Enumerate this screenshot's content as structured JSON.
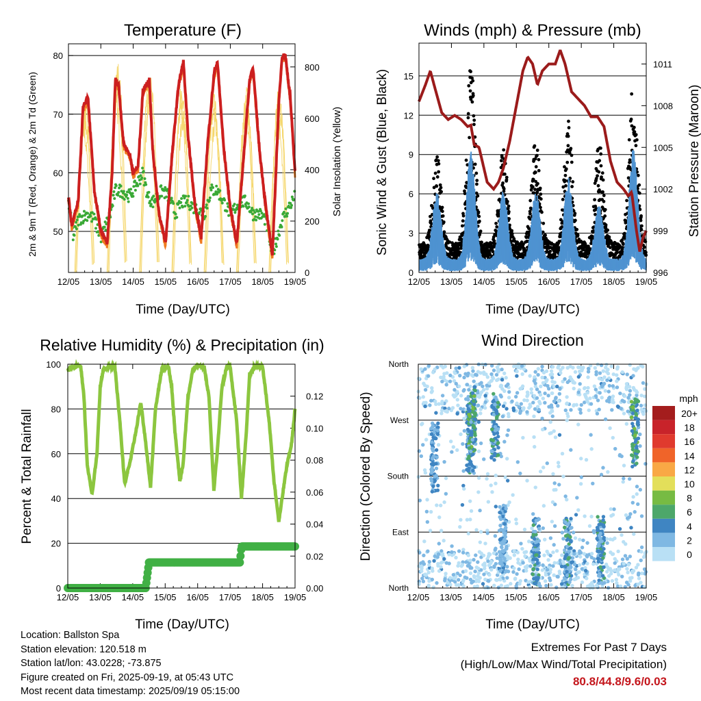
{
  "colors": {
    "t2m": "#cc1f1f",
    "t9m": "#f07b20",
    "td": "#3aa936",
    "solar": "#f5d76e",
    "gust": "#000000",
    "wind": "#4f93d1",
    "pressure": "#9b1b1b",
    "rh": "#8cc63f",
    "rain": "#41b045"
  },
  "info": {
    "location": "Location: Ballston Spa",
    "elevation": "Station elevation: 120.518 m",
    "latlon": "Station lat/lon: 43.0228; -73.875",
    "created": "Figure created on Fri, 2025-09-19, at 05:43 UTC",
    "recent": "Most recent data timestamp: 2025/09/19 05:15:00"
  },
  "extremes": {
    "line1": "Extremes For Past 7 Days",
    "line2": "(High/Low/Max Wind/Total Precipitation)",
    "values": "80.8/44.8/9.6/0.03"
  },
  "chart_data": [
    {
      "type": "line",
      "title": "Temperature (F)",
      "xlabel": "Time (Day/UTC)",
      "ylabel": "2m & 9m T (Red, Orange) & 2m Td (Green)",
      "y2label": "Solar Insolation (Yellow)",
      "x_ticks": [
        "12/05",
        "13/05",
        "14/05",
        "15/05",
        "16/05",
        "17/05",
        "18/05",
        "19/05"
      ],
      "xlim": [
        0,
        7
      ],
      "ylim": [
        43,
        82
      ],
      "y_ticks": [
        50,
        60,
        70,
        80
      ],
      "y2lim": [
        0,
        890
      ],
      "y2_ticks": [
        0,
        200,
        400,
        600,
        800
      ],
      "grid": true,
      "series": [
        {
          "name": "2m T",
          "color_key": "t2m",
          "x": [
            0,
            0.1,
            0.3,
            0.45,
            0.6,
            0.8,
            1.0,
            1.2,
            1.35,
            1.45,
            1.55,
            1.7,
            1.9,
            2.0,
            2.15,
            2.3,
            2.5,
            2.6,
            2.8,
            3.0,
            3.2,
            3.4,
            3.55,
            3.7,
            3.9,
            4.1,
            4.3,
            4.5,
            4.6,
            4.8,
            5.0,
            5.2,
            5.4,
            5.6,
            5.7,
            5.9,
            6.1,
            6.3,
            6.5,
            6.6,
            6.7,
            6.85,
            7.0
          ],
          "values": [
            56,
            51,
            55,
            71,
            73,
            57,
            50,
            48,
            60,
            76,
            75,
            65,
            63,
            60,
            61,
            74,
            76,
            64,
            53,
            48,
            63,
            75,
            79,
            66,
            55,
            49,
            65,
            77,
            79,
            64,
            54,
            48,
            62,
            76,
            78,
            64,
            54,
            46,
            72,
            80,
            80,
            73,
            60
          ]
        },
        {
          "name": "2m Td",
          "color_key": "td",
          "x": [
            0,
            0.15,
            0.3,
            0.6,
            0.8,
            1.0,
            1.3,
            1.45,
            1.6,
            1.9,
            2.1,
            2.3,
            2.45,
            2.6,
            2.9,
            3.1,
            3.3,
            3.5,
            3.7,
            3.9,
            4.2,
            4.4,
            4.6,
            4.8,
            5.0,
            5.3,
            5.5,
            5.7,
            5.9,
            6.1,
            6.3,
            6.6,
            6.8,
            7.0
          ],
          "values": [
            55,
            49,
            52,
            53,
            52,
            49,
            53,
            57,
            57,
            56,
            58,
            60,
            56,
            55,
            57,
            56,
            53,
            55,
            55,
            54,
            53,
            57,
            57,
            55,
            53,
            55,
            55,
            53,
            53,
            52,
            46,
            52,
            54,
            56
          ]
        }
      ],
      "solar_peaks": {
        "x": [
          0.5,
          1.5,
          2.5,
          3.5,
          4.5,
          5.5,
          6.5
        ],
        "values": [
          780,
          880,
          830,
          810,
          820,
          790,
          820
        ]
      }
    },
    {
      "type": "scatter",
      "title": "Winds (mph) & Pressure (mb)",
      "xlabel": "Time (Day/UTC)",
      "ylabel": "Sonic Wind & Gust (Blue, Black)",
      "y2label": "Station Pressure (Maroon)",
      "x_ticks": [
        "12/05",
        "13/05",
        "14/05",
        "15/05",
        "16/05",
        "17/05",
        "18/05",
        "19/05"
      ],
      "xlim": [
        0,
        7
      ],
      "ylim": [
        0,
        17.5
      ],
      "y_ticks": [
        0,
        3,
        6,
        9,
        12,
        15
      ],
      "y2lim": [
        996,
        1012.5
      ],
      "y2_ticks": [
        996,
        999,
        1002,
        1005,
        1008,
        1011
      ],
      "grid": true,
      "pressure": {
        "x": [
          0,
          0.2,
          0.35,
          0.5,
          0.7,
          0.9,
          1.1,
          1.3,
          1.5,
          1.6,
          1.7,
          1.85,
          2.0,
          2.1,
          2.3,
          2.45,
          2.6,
          2.8,
          3.0,
          3.2,
          3.35,
          3.5,
          3.65,
          3.8,
          4.0,
          4.2,
          4.35,
          4.5,
          4.7,
          4.9,
          5.1,
          5.3,
          5.5,
          5.7,
          5.9,
          6.1,
          6.3,
          6.45,
          6.55,
          6.7,
          6.8,
          6.9,
          7.0
        ],
        "values": [
          1008.3,
          1009.5,
          1010.5,
          1009.2,
          1007.5,
          1007.0,
          1007.3,
          1007.0,
          1006.5,
          1006.6,
          1005.2,
          1005.0,
          1003.5,
          1002.5,
          1002.0,
          1002.5,
          1003.5,
          1005.5,
          1008.0,
          1010.5,
          1011.5,
          1011.0,
          1009.5,
          1010.5,
          1011.0,
          1011.0,
          1012.0,
          1011.0,
          1009.0,
          1008.5,
          1008.0,
          1007.2,
          1007.2,
          1006.5,
          1004.0,
          1002.5,
          1002.0,
          1001.5,
          1001.8,
          999.0,
          997.5,
          998.5,
          999.0
        ]
      },
      "wind_peaks": {
        "x": [
          0.55,
          1.6,
          2.6,
          3.6,
          4.6,
          5.55,
          6.6
        ],
        "values": [
          6,
          9,
          6,
          6,
          7,
          5,
          9
        ]
      },
      "gust_peaks": {
        "x": [
          0.55,
          1.6,
          2.6,
          3.6,
          4.6,
          5.55,
          6.6
        ],
        "values": [
          9,
          15.5,
          9,
          10,
          11,
          9.5,
          14.5
        ]
      }
    },
    {
      "type": "line",
      "title": "Relative Humidity (%) & Precipitation (in)",
      "xlabel": "Time (Day/UTC)",
      "ylabel": "Percent & Total Rainfall",
      "x_ticks": [
        "12/05",
        "13/05",
        "14/05",
        "15/05",
        "16/05",
        "17/05",
        "18/05",
        "19/05"
      ],
      "xlim": [
        0,
        7
      ],
      "ylim": [
        0,
        100
      ],
      "y_ticks": [
        0,
        20,
        40,
        60,
        80,
        100
      ],
      "y2lim": [
        0,
        0.14
      ],
      "y2_ticks": [
        "0.00",
        "0.02",
        "0.04",
        "0.06",
        "0.08",
        "0.10",
        "0.12"
      ],
      "grid": true,
      "rh": {
        "x": [
          0,
          0.1,
          0.2,
          0.4,
          0.5,
          0.6,
          0.75,
          0.9,
          1.0,
          1.1,
          1.3,
          1.45,
          1.6,
          1.75,
          1.9,
          2.1,
          2.25,
          2.4,
          2.55,
          2.7,
          2.9,
          3.1,
          3.2,
          3.3,
          3.45,
          3.55,
          3.7,
          3.85,
          4.0,
          4.2,
          4.35,
          4.5,
          4.6,
          4.75,
          4.9,
          5.0,
          5.2,
          5.35,
          5.5,
          5.6,
          5.75,
          6.0,
          6.2,
          6.35,
          6.5,
          6.6,
          6.75,
          6.9,
          7.0
        ],
        "values": [
          97,
          98,
          99,
          99,
          85,
          55,
          42,
          60,
          90,
          98,
          99,
          99,
          75,
          47,
          55,
          70,
          83,
          65,
          45,
          80,
          98,
          99,
          90,
          70,
          48,
          55,
          85,
          98,
          99,
          99,
          85,
          44,
          60,
          90,
          99,
          99,
          75,
          40,
          70,
          95,
          99,
          99,
          75,
          48,
          30,
          40,
          55,
          65,
          80
        ]
      },
      "rain": {
        "x": [
          0,
          2.4,
          2.45,
          2.5,
          3.5,
          4.0,
          5.3,
          5.35,
          5.4,
          6.2,
          7.0
        ],
        "values": [
          0,
          0,
          0.008,
          0.016,
          0.016,
          0.016,
          0.016,
          0.026,
          0.026,
          0.026,
          0.026
        ]
      }
    },
    {
      "type": "scatter",
      "title": "Wind Direction",
      "xlabel": "Time (Day/UTC)",
      "ylabel": "Direction (Colored By Speed)",
      "x_ticks": [
        "12/05",
        "13/05",
        "14/05",
        "15/05",
        "16/05",
        "17/05",
        "18/05",
        "19/05"
      ],
      "xlim": [
        0,
        7
      ],
      "ylim": [
        0,
        360
      ],
      "y_ticks": [
        "North",
        "East",
        "South",
        "West",
        "North"
      ],
      "grid": true,
      "legend": {
        "title": "mph",
        "labels": [
          "20+",
          "18",
          "16",
          "14",
          "12",
          "10",
          "8",
          "6",
          "4",
          "2",
          "0"
        ],
        "colors": [
          "#a41d1d",
          "#c8232a",
          "#e03a2e",
          "#f06429",
          "#f9a845",
          "#e3df5a",
          "#77bb43",
          "#4da76a",
          "#3f85c2",
          "#7fb8e3",
          "#b9e0f5"
        ]
      },
      "clusters": [
        {
          "x": 0.5,
          "dir": 210,
          "speed": 4
        },
        {
          "x": 1.6,
          "dir": 240,
          "speed": 5
        },
        {
          "x": 1.65,
          "dir": 270,
          "speed": 7
        },
        {
          "x": 2.35,
          "dir": 260,
          "speed": 5
        },
        {
          "x": 2.6,
          "dir": 80,
          "speed": 3
        },
        {
          "x": 3.6,
          "dir": 60,
          "speed": 5
        },
        {
          "x": 4.6,
          "dir": 60,
          "speed": 5
        },
        {
          "x": 5.6,
          "dir": 60,
          "speed": 5
        },
        {
          "x": 6.65,
          "dir": 250,
          "speed": 7
        }
      ]
    }
  ]
}
